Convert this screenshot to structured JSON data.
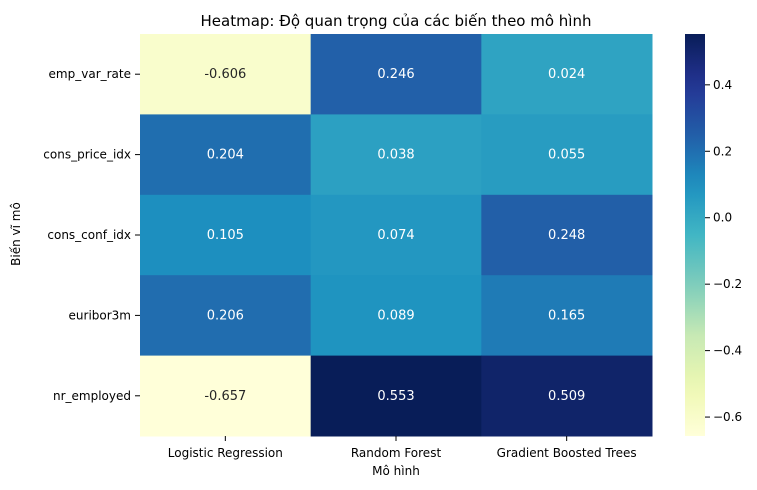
{
  "chart_data": {
    "type": "heatmap",
    "title": "Heatmap: Độ quan trọng của các biến theo mô hình",
    "xlabel": "Mô hình",
    "ylabel": "Biến vĩ mô",
    "columns": [
      "Logistic Regression",
      "Random Forest",
      "Gradient Boosted Trees"
    ],
    "rows": [
      "emp_var_rate",
      "cons_price_idx",
      "cons_conf_idx",
      "euribor3m",
      "nr_employed"
    ],
    "values": [
      [
        -0.606,
        0.246,
        0.024
      ],
      [
        0.204,
        0.038,
        0.055
      ],
      [
        0.105,
        0.074,
        0.248
      ],
      [
        0.206,
        0.089,
        0.165
      ],
      [
        -0.657,
        0.553,
        0.509
      ]
    ],
    "value_labels": [
      [
        "-0.606",
        "0.246",
        "0.024"
      ],
      [
        "0.204",
        "0.038",
        "0.055"
      ],
      [
        "0.105",
        "0.074",
        "0.248"
      ],
      [
        "0.206",
        "0.089",
        "0.165"
      ],
      [
        "-0.657",
        "0.553",
        "0.509"
      ]
    ],
    "colormap": "YlGnBu",
    "vmin": -0.657,
    "vmax": 0.553,
    "colorbar_ticks": [
      0.4,
      0.2,
      0.0,
      -0.2,
      -0.4,
      -0.6
    ],
    "colorbar_tick_labels": [
      "0.4",
      "0.2",
      "0.0",
      "−0.2",
      "−0.4",
      "−0.6"
    ]
  }
}
